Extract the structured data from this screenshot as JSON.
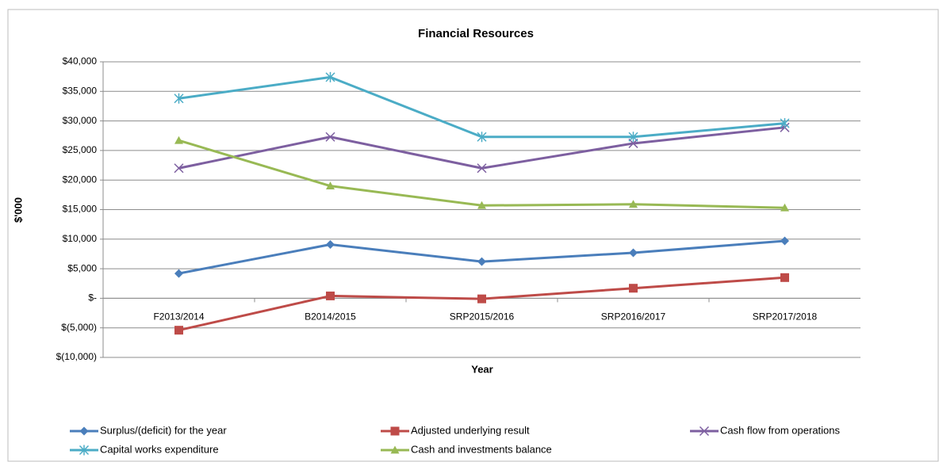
{
  "chart_data": {
    "type": "line",
    "title": "Financial Resources",
    "x_label": "Year",
    "y_label": "$'000",
    "categories": [
      "F2013/2014",
      "B2014/2015",
      "SRP2015/2016",
      "SRP2016/2017",
      "SRP2017/2018"
    ],
    "series": [
      {
        "name": "Surplus/(deficit) for the year",
        "color": "#4a7ebb",
        "marker": "diamond",
        "values": [
          4200,
          9100,
          6200,
          7700,
          9700
        ]
      },
      {
        "name": "Adjusted underlying result",
        "color": "#be4b48",
        "marker": "square",
        "values": [
          -5400,
          400,
          -100,
          1700,
          3500
        ]
      },
      {
        "name": "Cash flow from operations",
        "color": "#7d5fa0",
        "marker": "x",
        "values": [
          22000,
          27300,
          22000,
          26200,
          28900
        ]
      },
      {
        "name": "Capital works expenditure",
        "color": "#4bacc6",
        "marker": "star",
        "values": [
          33800,
          37400,
          27300,
          27300,
          29600
        ]
      },
      {
        "name": "Cash and investments balance",
        "color": "#98b954",
        "marker": "triangle",
        "values": [
          26700,
          19000,
          15700,
          15900,
          15300
        ]
      }
    ],
    "ylim": [
      -10000,
      40000
    ],
    "yticks": [
      {
        "value": -10000,
        "label": "$(10,000)"
      },
      {
        "value": -5000,
        "label": "$(5,000)"
      },
      {
        "value": 0,
        "label": "$-"
      },
      {
        "value": 5000,
        "label": "$5,000"
      },
      {
        "value": 10000,
        "label": "$10,000"
      },
      {
        "value": 15000,
        "label": "$15,000"
      },
      {
        "value": 20000,
        "label": "$20,000"
      },
      {
        "value": 25000,
        "label": "$25,000"
      },
      {
        "value": 30000,
        "label": "$30,000"
      },
      {
        "value": 35000,
        "label": "$35,000"
      },
      {
        "value": 40000,
        "label": "$40,000"
      }
    ],
    "grid": true,
    "legend": "bottom"
  }
}
